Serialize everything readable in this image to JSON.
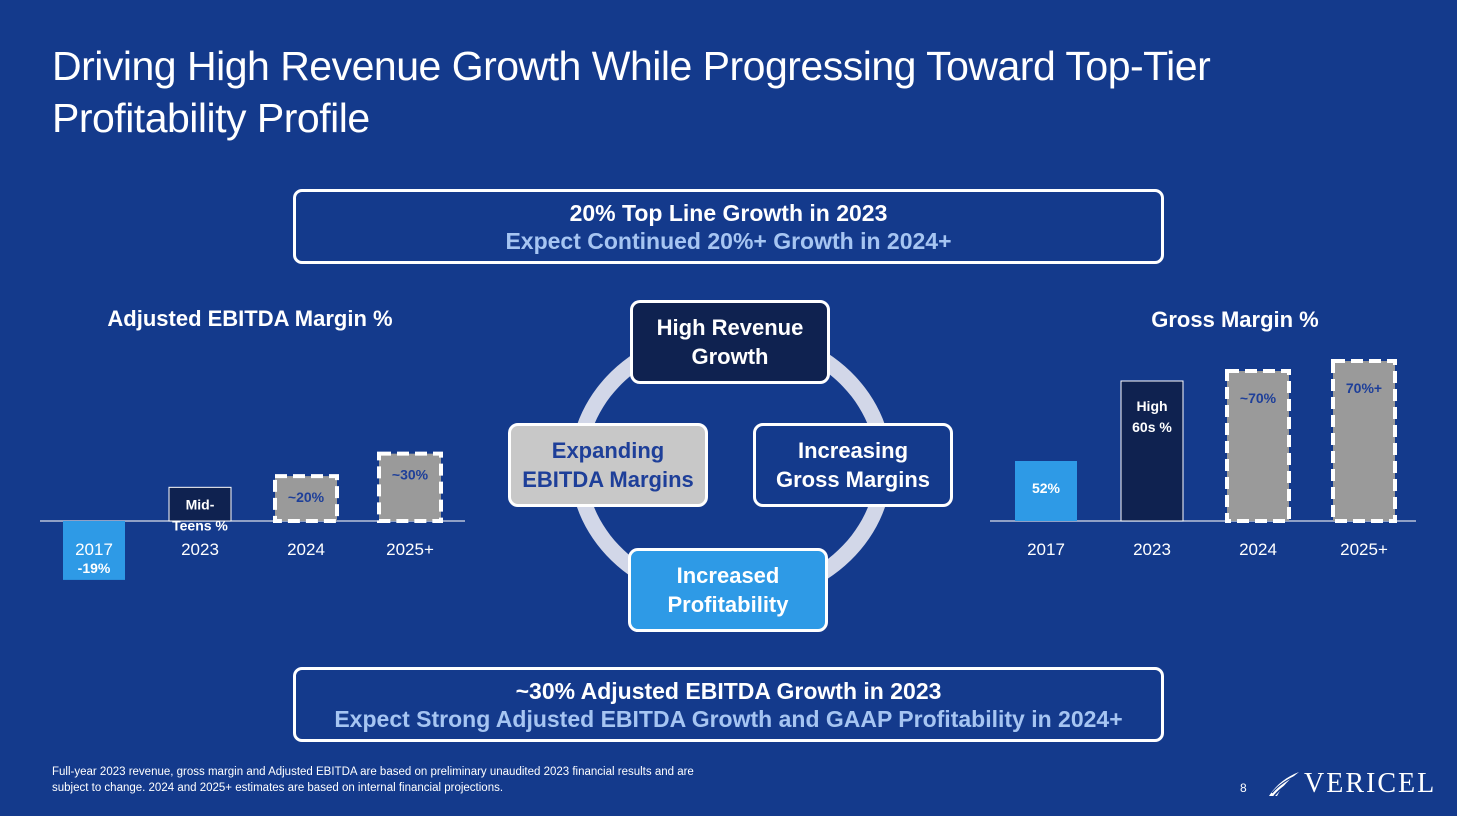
{
  "slide": {
    "title": "Driving High Revenue Growth While Progressing Toward Top-Tier Profitability Profile",
    "page_number": "8",
    "footnote": "Full-year 2023 revenue, gross margin and Adjusted EBITDA are based on preliminary unaudited 2023 financial results and are subject to change. 2024 and 2025+ estimates are based on internal financial projections.",
    "logo_text": "VERICEL"
  },
  "callout_top": {
    "line1": "20% Top Line Growth in 2023",
    "line2": "Expect Continued 20%+ Growth in 2024+"
  },
  "callout_bottom": {
    "line1": "~30% Adjusted EBITDA Growth in 2023",
    "line2": "Expect Strong Adjusted EBITDA Growth and GAAP Profitability in 2024+"
  },
  "cycle": {
    "top": "High Revenue\nGrowth",
    "right": "Increasing\nGross Margins",
    "bottom": "Increased\nProfitability",
    "left": "Expanding\nEBITDA Margins"
  },
  "colors": {
    "background": "#143a8c",
    "actual_light": "#2e9ae6",
    "actual_dark": "#0f2250",
    "estimate": "#9a9a9a",
    "estimate_label": "#1e3f99"
  },
  "chart_data": [
    {
      "type": "bar",
      "title": "Adjusted EBITDA Margin %",
      "categories": [
        "2017",
        "2023",
        "2024",
        "2025+"
      ],
      "values": [
        -19,
        15,
        20,
        30
      ],
      "labels": [
        "-19%",
        "Mid-\nTeens %",
        "~20%",
        "~30%"
      ],
      "styles": [
        "actual_light",
        "actual_dark",
        "estimate",
        "estimate"
      ],
      "ylim": [
        -19,
        30
      ]
    },
    {
      "type": "bar",
      "title": "Gross Margin %",
      "categories": [
        "2017",
        "2023",
        "2024",
        "2025+"
      ],
      "values": [
        52,
        68,
        70,
        72
      ],
      "labels": [
        "52%",
        "High\n60s %",
        "~70%",
        "70%+"
      ],
      "styles": [
        "actual_light",
        "actual_dark",
        "estimate",
        "estimate"
      ],
      "ylim": [
        40,
        72
      ]
    }
  ]
}
